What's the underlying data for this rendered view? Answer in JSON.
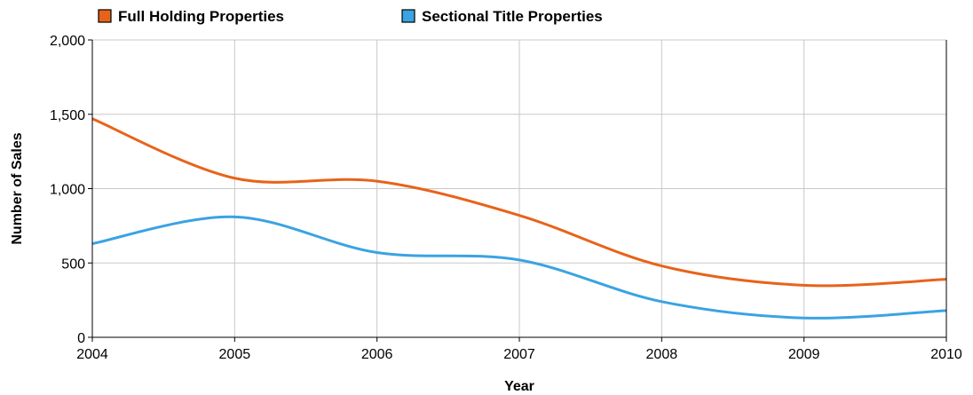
{
  "chart_data": {
    "type": "line",
    "title": "",
    "xlabel": "Year",
    "ylabel": "Number of Sales",
    "x": [
      "2004",
      "2005",
      "2006",
      "2007",
      "2008",
      "2009",
      "2010"
    ],
    "ylim": [
      0,
      2000
    ],
    "yticks": [
      "0",
      "500",
      "1,000",
      "1,500",
      "2,000"
    ],
    "grid": true,
    "legend_position": "top-left",
    "smooth": true,
    "series": [
      {
        "name": "Full Holding Properties",
        "color": "#e8631a",
        "values": [
          1470,
          1070,
          1050,
          820,
          480,
          350,
          390
        ]
      },
      {
        "name": "Sectional Title Properties",
        "color": "#3aa3e3",
        "values": [
          630,
          810,
          570,
          520,
          240,
          130,
          180
        ]
      }
    ]
  }
}
